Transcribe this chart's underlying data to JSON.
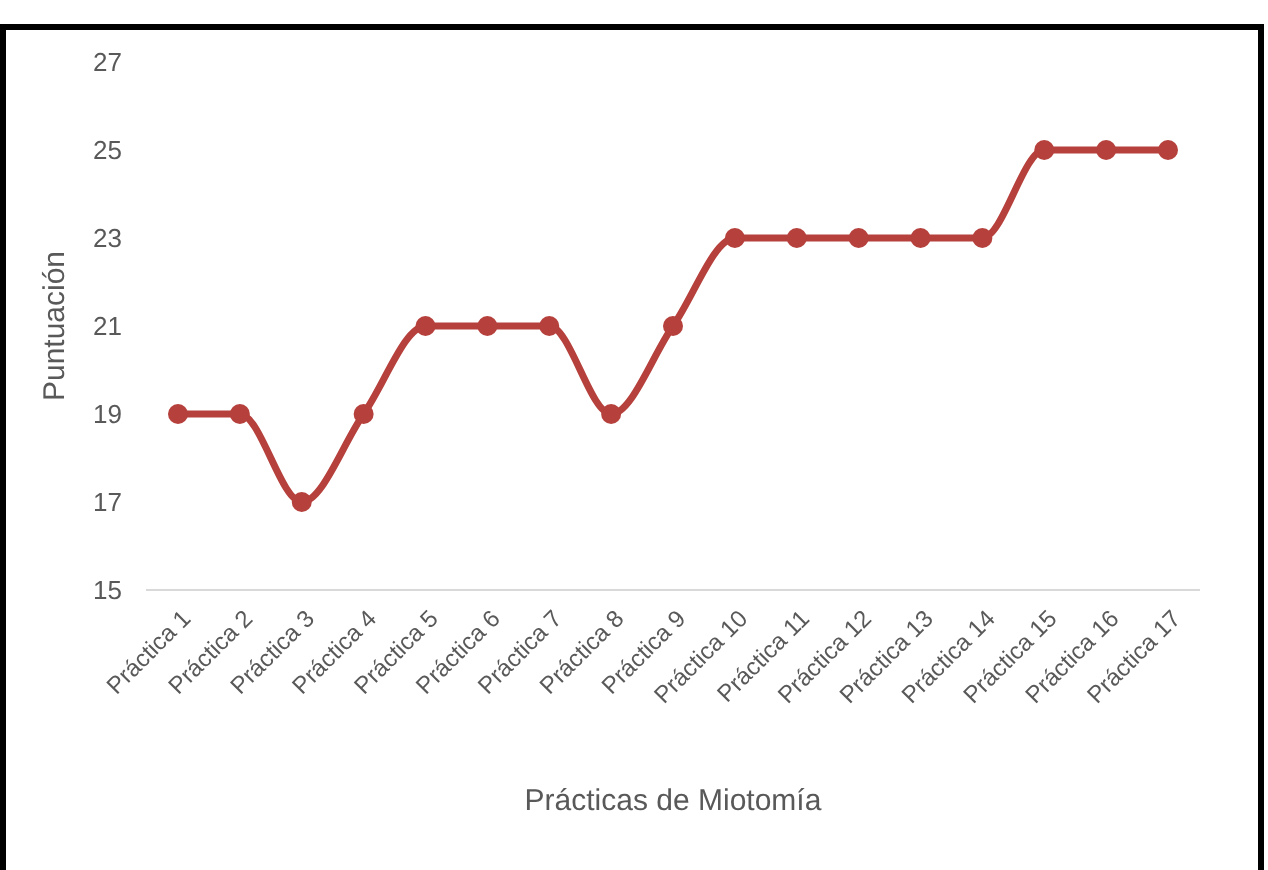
{
  "chart_data": {
    "type": "line",
    "xlabel": "Prácticas de Miotomía",
    "ylabel": "Puntuación",
    "categories": [
      "Práctica 1",
      "Práctica 2",
      "Práctica 3",
      "Práctica 4",
      "Práctica 5",
      "Práctica 6",
      "Práctica 7",
      "Práctica 8",
      "Práctica 9",
      "Práctica 10",
      "Práctica 11",
      "Práctica 12",
      "Práctica 13",
      "Práctica 14",
      "Práctica 15",
      "Práctica 16",
      "Práctica 17"
    ],
    "series": [
      {
        "color": "#b5403c",
        "values": [
          19,
          19,
          17,
          19,
          21,
          21,
          21,
          19,
          21,
          23,
          23,
          23,
          23,
          23,
          25,
          25,
          25
        ]
      }
    ],
    "ylim": [
      15,
      27
    ],
    "yticks": [
      15,
      17,
      19,
      21,
      23,
      25,
      27
    ],
    "grid": false,
    "marker": "circle",
    "line_style": "solid"
  }
}
